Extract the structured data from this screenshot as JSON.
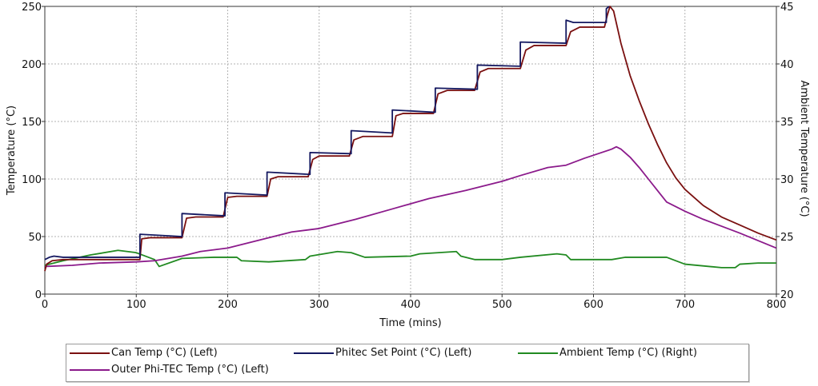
{
  "chart_data": {
    "type": "line",
    "xlabel": "Time (mins)",
    "ylabel": "Temperature (°C)",
    "y2label": "Ambient Temperature (°C)",
    "xlim": [
      0,
      800
    ],
    "ylim": [
      0,
      250
    ],
    "y2lim": [
      20,
      45
    ],
    "xticks": [
      "0",
      "100",
      "200",
      "300",
      "400",
      "500",
      "600",
      "700",
      "800"
    ],
    "yticks": [
      "0",
      "50",
      "100",
      "150",
      "200",
      "250"
    ],
    "y2ticks": [
      "20",
      "25",
      "30",
      "35",
      "40",
      "45"
    ],
    "grid": true,
    "legend_position": "bottom",
    "series": [
      {
        "name": "Can Temp (°C) (Left)",
        "axis": "left",
        "color": "#7a1010",
        "points": [
          [
            0,
            20
          ],
          [
            2,
            26
          ],
          [
            8,
            29
          ],
          [
            20,
            30
          ],
          [
            60,
            30
          ],
          [
            104,
            30
          ],
          [
            106,
            48
          ],
          [
            115,
            49
          ],
          [
            150,
            49
          ],
          [
            155,
            66
          ],
          [
            165,
            67
          ],
          [
            195,
            67
          ],
          [
            200,
            84
          ],
          [
            210,
            85
          ],
          [
            243,
            85
          ],
          [
            247,
            100
          ],
          [
            255,
            102
          ],
          [
            288,
            102
          ],
          [
            293,
            117
          ],
          [
            300,
            120
          ],
          [
            333,
            120
          ],
          [
            338,
            134
          ],
          [
            348,
            137
          ],
          [
            380,
            137
          ],
          [
            384,
            155
          ],
          [
            392,
            157
          ],
          [
            425,
            157
          ],
          [
            430,
            174
          ],
          [
            440,
            177
          ],
          [
            470,
            177
          ],
          [
            476,
            193
          ],
          [
            485,
            196
          ],
          [
            520,
            196
          ],
          [
            526,
            212
          ],
          [
            535,
            216
          ],
          [
            570,
            216
          ],
          [
            575,
            228
          ],
          [
            585,
            232
          ],
          [
            612,
            232
          ],
          [
            615,
            242
          ],
          [
            618,
            250
          ],
          [
            622,
            246
          ],
          [
            630,
            218
          ],
          [
            640,
            190
          ],
          [
            650,
            168
          ],
          [
            660,
            148
          ],
          [
            670,
            130
          ],
          [
            680,
            114
          ],
          [
            690,
            101
          ],
          [
            700,
            91
          ],
          [
            720,
            77
          ],
          [
            740,
            67
          ],
          [
            760,
            60
          ],
          [
            780,
            53
          ],
          [
            800,
            47
          ]
        ]
      },
      {
        "name": "Phitec Set Point (°C) (Left)",
        "axis": "left",
        "color": "#141860",
        "points": [
          [
            0,
            30
          ],
          [
            5,
            32
          ],
          [
            10,
            33
          ],
          [
            20,
            32
          ],
          [
            104,
            32
          ],
          [
            104,
            52
          ],
          [
            150,
            50
          ],
          [
            150,
            70
          ],
          [
            197,
            68
          ],
          [
            197,
            88
          ],
          [
            243,
            86
          ],
          [
            243,
            106
          ],
          [
            290,
            104
          ],
          [
            290,
            123
          ],
          [
            335,
            122
          ],
          [
            335,
            142
          ],
          [
            380,
            140
          ],
          [
            380,
            160
          ],
          [
            427,
            158
          ],
          [
            427,
            179
          ],
          [
            473,
            178
          ],
          [
            473,
            199
          ],
          [
            520,
            198
          ],
          [
            520,
            219
          ],
          [
            570,
            218
          ],
          [
            570,
            238
          ],
          [
            578,
            236
          ],
          [
            614,
            236
          ],
          [
            614,
            248
          ],
          [
            617,
            250
          ]
        ]
      },
      {
        "name": "Ambient Temp (°C) (Right)",
        "axis": "right",
        "color": "#218a21",
        "points": [
          [
            0,
            22.5
          ],
          [
            20,
            22.9
          ],
          [
            50,
            23.4
          ],
          [
            80,
            23.8
          ],
          [
            100,
            23.6
          ],
          [
            120,
            23.0
          ],
          [
            125,
            22.4
          ],
          [
            150,
            23.1
          ],
          [
            185,
            23.2
          ],
          [
            210,
            23.2
          ],
          [
            215,
            22.9
          ],
          [
            245,
            22.8
          ],
          [
            285,
            23.0
          ],
          [
            290,
            23.3
          ],
          [
            320,
            23.7
          ],
          [
            335,
            23.6
          ],
          [
            350,
            23.2
          ],
          [
            400,
            23.3
          ],
          [
            410,
            23.5
          ],
          [
            450,
            23.7
          ],
          [
            455,
            23.3
          ],
          [
            470,
            23.0
          ],
          [
            500,
            23.0
          ],
          [
            520,
            23.2
          ],
          [
            560,
            23.5
          ],
          [
            570,
            23.4
          ],
          [
            575,
            23.0
          ],
          [
            620,
            23.0
          ],
          [
            635,
            23.2
          ],
          [
            680,
            23.2
          ],
          [
            700,
            22.6
          ],
          [
            740,
            22.3
          ],
          [
            755,
            22.3
          ],
          [
            760,
            22.6
          ],
          [
            780,
            22.7
          ],
          [
            800,
            22.7
          ]
        ]
      },
      {
        "name": "Outer Phi-TEC Temp (°C) (Left)",
        "axis": "left",
        "color": "#8b1a8b",
        "points": [
          [
            0,
            24
          ],
          [
            30,
            25
          ],
          [
            60,
            27
          ],
          [
            100,
            28
          ],
          [
            120,
            29
          ],
          [
            150,
            33
          ],
          [
            170,
            37
          ],
          [
            200,
            40
          ],
          [
            240,
            48
          ],
          [
            270,
            54
          ],
          [
            300,
            57
          ],
          [
            340,
            65
          ],
          [
            380,
            74
          ],
          [
            420,
            83
          ],
          [
            460,
            90
          ],
          [
            500,
            98
          ],
          [
            520,
            103
          ],
          [
            550,
            110
          ],
          [
            570,
            112
          ],
          [
            590,
            118
          ],
          [
            620,
            126
          ],
          [
            625,
            128
          ],
          [
            630,
            126
          ],
          [
            640,
            119
          ],
          [
            650,
            110
          ],
          [
            660,
            100
          ],
          [
            670,
            90
          ],
          [
            680,
            80
          ],
          [
            700,
            72
          ],
          [
            720,
            65
          ],
          [
            760,
            53
          ],
          [
            800,
            40
          ]
        ]
      }
    ]
  }
}
